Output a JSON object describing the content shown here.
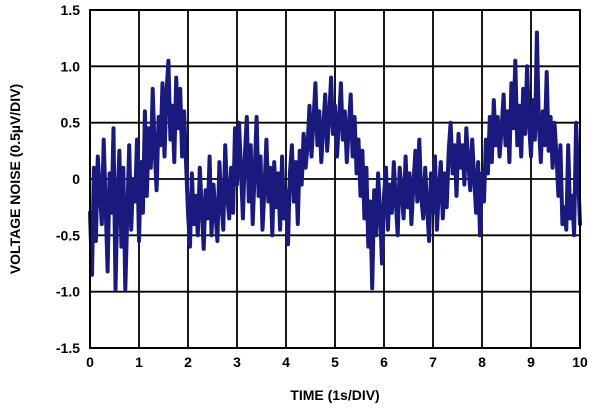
{
  "chart_data": {
    "type": "line",
    "title": "",
    "xlabel": "TIME (1s/DIV)",
    "ylabel": "VOLTAGE NOISE (0.5µV/DIV)",
    "xlim": [
      0,
      10
    ],
    "ylim": [
      -1.5,
      1.5
    ],
    "x_ticks": [
      "0",
      "1",
      "2",
      "3",
      "4",
      "5",
      "6",
      "7",
      "8",
      "9",
      "10"
    ],
    "y_ticks": [
      "1.5",
      "1.0",
      "0.5",
      "0",
      "-0.5",
      "-1.0",
      "-1.5"
    ],
    "grid": true,
    "line_color": "#1a1a7e",
    "series": [
      {
        "x": [
          0,
          0.04,
          0.08,
          0.12,
          0.16,
          0.2,
          0.24,
          0.28,
          0.32,
          0.36,
          0.4,
          0.44,
          0.48,
          0.52,
          0.56,
          0.6,
          0.64,
          0.68,
          0.72,
          0.76,
          0.8,
          0.84,
          0.88,
          0.92,
          0.96,
          1.0,
          1.04,
          1.08,
          1.12,
          1.16,
          1.2,
          1.24,
          1.28,
          1.32,
          1.36,
          1.4,
          1.44,
          1.48,
          1.52,
          1.56,
          1.6,
          1.64,
          1.68,
          1.72,
          1.76,
          1.8,
          1.84,
          1.88,
          1.92,
          1.96,
          2.0,
          2.04,
          2.08,
          2.12,
          2.16,
          2.2,
          2.24,
          2.28,
          2.32,
          2.36,
          2.4,
          2.44,
          2.48,
          2.52,
          2.56,
          2.6,
          2.64,
          2.68,
          2.72,
          2.76,
          2.8,
          2.84,
          2.88,
          2.92,
          2.96,
          3.0,
          3.04,
          3.08,
          3.12,
          3.16,
          3.2,
          3.24,
          3.28,
          3.32,
          3.36,
          3.4,
          3.44,
          3.48,
          3.52,
          3.56,
          3.6,
          3.64,
          3.68,
          3.72,
          3.76,
          3.8,
          3.84,
          3.88,
          3.92,
          3.96,
          4.0,
          4.04,
          4.08,
          4.12,
          4.16,
          4.2,
          4.24,
          4.28,
          4.32,
          4.36,
          4.4,
          4.44,
          4.48,
          4.52,
          4.56,
          4.6,
          4.64,
          4.68,
          4.72,
          4.76,
          4.8,
          4.84,
          4.88,
          4.92,
          4.96,
          5.0,
          5.04,
          5.08,
          5.12,
          5.16,
          5.2,
          5.24,
          5.28,
          5.32,
          5.36,
          5.4,
          5.44,
          5.48,
          5.52,
          5.56,
          5.6,
          5.64,
          5.68,
          5.72,
          5.76,
          5.8,
          5.84,
          5.88,
          5.92,
          5.96,
          6.0,
          6.04,
          6.08,
          6.12,
          6.16,
          6.2,
          6.24,
          6.28,
          6.32,
          6.36,
          6.4,
          6.44,
          6.48,
          6.52,
          6.56,
          6.6,
          6.64,
          6.68,
          6.72,
          6.76,
          6.8,
          6.84,
          6.88,
          6.92,
          6.96,
          7.0,
          7.04,
          7.08,
          7.12,
          7.16,
          7.2,
          7.24,
          7.28,
          7.32,
          7.36,
          7.4,
          7.44,
          7.48,
          7.52,
          7.56,
          7.6,
          7.64,
          7.68,
          7.72,
          7.76,
          7.8,
          7.84,
          7.88,
          7.92,
          7.96,
          8.0,
          8.04,
          8.08,
          8.12,
          8.16,
          8.2,
          8.24,
          8.28,
          8.32,
          8.36,
          8.4,
          8.44,
          8.48,
          8.52,
          8.56,
          8.6,
          8.64,
          8.68,
          8.72,
          8.76,
          8.8,
          8.84,
          8.88,
          8.92,
          8.96,
          9.0,
          9.04,
          9.08,
          9.12,
          9.16,
          9.2,
          9.24,
          9.28,
          9.32,
          9.36,
          9.4,
          9.44,
          9.48,
          9.52,
          9.56,
          9.6,
          9.64,
          9.68,
          9.72,
          9.76,
          9.8,
          9.84,
          9.88,
          9.92,
          9.96,
          10.0
        ],
        "y": [
          -0.3,
          -0.85,
          0.1,
          -0.55,
          0.2,
          -0.1,
          -0.4,
          0.35,
          -0.25,
          -0.82,
          0.05,
          -0.3,
          0.45,
          -0.98,
          -0.2,
          0.25,
          -0.6,
          0.1,
          -0.98,
          -0.35,
          0.3,
          -0.45,
          0.0,
          -0.2,
          0.35,
          -0.55,
          0.15,
          -0.3,
          0.6,
          -0.15,
          0.45,
          0.1,
          0.8,
          0.25,
          -0.1,
          0.55,
          0.3,
          0.85,
          0.2,
          0.75,
          1.05,
          0.35,
          0.65,
          0.15,
          0.9,
          0.45,
          0.8,
          0.2,
          0.6,
          0.15,
          -0.3,
          -0.6,
          0.05,
          -0.4,
          -0.15,
          -0.5,
          0.1,
          -0.25,
          -0.62,
          -0.1,
          -0.35,
          0.2,
          -0.5,
          -0.05,
          -0.3,
          -0.55,
          0.15,
          -0.2,
          -0.45,
          0.3,
          -0.15,
          -0.35,
          0.1,
          -0.3,
          0.45,
          -0.05,
          0.5,
          0.1,
          -0.35,
          0.2,
          0.55,
          -0.2,
          0.3,
          -0.4,
          0.05,
          0.55,
          -0.15,
          0.2,
          -0.45,
          -0.1,
          0.35,
          -0.2,
          0.1,
          -0.5,
          0.15,
          -0.25,
          0.05,
          -0.45,
          0.2,
          -0.35,
          -0.1,
          -0.58,
          0.05,
          0.3,
          -0.2,
          0.15,
          -0.4,
          0.25,
          -0.05,
          0.4,
          0.1,
          0.3,
          0.65,
          0.2,
          0.5,
          0.85,
          0.3,
          0.6,
          0.15,
          0.45,
          0.75,
          0.25,
          0.55,
          0.9,
          0.4,
          0.65,
          0.2,
          0.5,
          0.85,
          0.35,
          0.6,
          0.15,
          0.45,
          0.75,
          0.2,
          0.55,
          0.05,
          0.35,
          -0.15,
          0.25,
          -0.35,
          0.1,
          -0.6,
          -0.2,
          -0.97,
          -0.1,
          -0.5,
          0.05,
          -0.3,
          -0.75,
          -0.15,
          0.1,
          -0.45,
          -0.05,
          -0.3,
          0.15,
          -0.2,
          -0.5,
          0.1,
          -0.1,
          -0.35,
          0.2,
          -0.25,
          0.05,
          -0.4,
          -0.05,
          0.25,
          -0.2,
          0.35,
          -0.15,
          -0.35,
          0.1,
          -0.25,
          -0.55,
          0.05,
          -0.3,
          0.2,
          -0.45,
          -0.1,
          0.15,
          -0.35,
          0.05,
          -0.25,
          0.25,
          0.5,
          0.05,
          0.3,
          -0.15,
          0.4,
          0.1,
          0.3,
          -0.05,
          0.45,
          0.15,
          -0.1,
          0.35,
          0.0,
          -0.3,
          0.15,
          -0.5,
          0.05,
          -0.2,
          0.35,
          0.05,
          0.55,
          0.15,
          0.7,
          0.3,
          0.55,
          0.2,
          0.45,
          0.75,
          0.3,
          0.6,
          0.15,
          0.85,
          0.45,
          1.05,
          0.3,
          0.65,
          0.2,
          0.8,
          0.4,
          1.0,
          0.5,
          0.2,
          0.7,
          0.35,
          1.3,
          0.5,
          0.15,
          0.6,
          0.3,
          0.95,
          0.25,
          0.55,
          0.1,
          0.5,
          0.2,
          -0.15,
          0.3,
          -0.4,
          -0.25,
          -0.45,
          0.3,
          -0.35,
          -0.15,
          -0.5,
          0.5,
          0.05,
          -0.4
        ]
      }
    ]
  }
}
